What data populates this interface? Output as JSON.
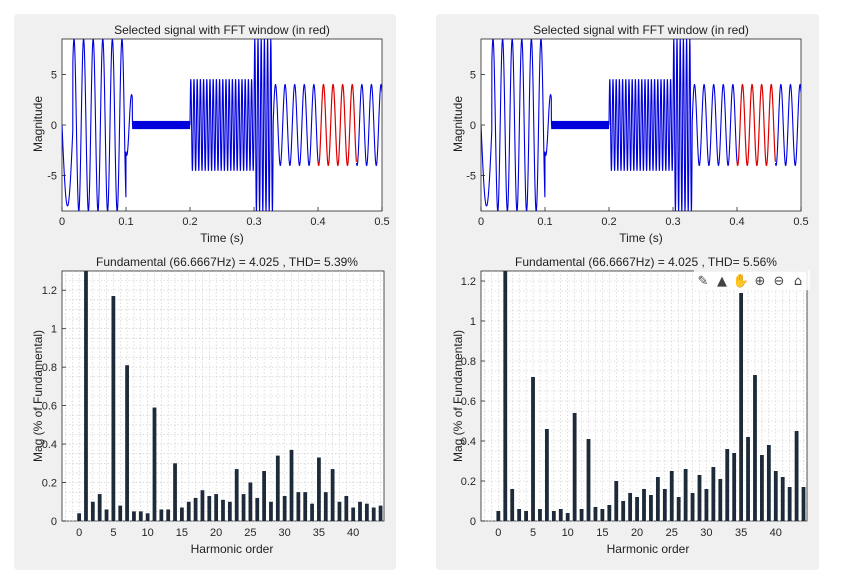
{
  "chart_data": [
    {
      "type": "line",
      "title": "Selected signal with FFT window (in red)",
      "xlabel": "Time (s)",
      "ylabel": "Magnitude",
      "xlim": [
        0,
        0.5
      ],
      "ylim": [
        -8.5,
        8.5
      ],
      "xticks": [
        "0",
        "0.1",
        "0.2",
        "0.3",
        "0.4",
        "0.5"
      ],
      "yticks": [
        "-5",
        "0",
        "5"
      ],
      "signal_color": "#0000dd",
      "window_color": "#dd0000",
      "fft_window": [
        0.4,
        0.46
      ],
      "segments": [
        {
          "t0": 0,
          "t1": 0.017,
          "amp": 8,
          "freq": 29,
          "phase": 3.14159
        },
        {
          "t0": 0.017,
          "t1": 0.1,
          "amp": 8.5,
          "freq": 66.7,
          "phase": 0
        },
        {
          "t0": 0.1,
          "t1": 0.11,
          "amp": 3,
          "freq": 66.7,
          "phase": 0
        },
        {
          "t0": 0.11,
          "t1": 0.2,
          "amp": 0.4,
          "freq": 666.7,
          "phase": 0
        },
        {
          "t0": 0.2,
          "t1": 0.3,
          "amp": 4.5,
          "freq": 200,
          "phase": 0
        },
        {
          "t0": 0.3,
          "t1": 0.33,
          "amp": 8.5,
          "freq": 200,
          "phase": 0
        },
        {
          "t0": 0.33,
          "t1": 0.5,
          "amp": 4,
          "freq": 66.7,
          "phase": 0
        }
      ]
    },
    {
      "type": "bar",
      "title": "Fundamental (66.6667Hz) = 4.025 , THD= 5.39%",
      "xlabel": "Harmonic order",
      "ylabel": "Mag (% of Fundamental)",
      "xlim": [
        -2.5,
        44.5
      ],
      "ylim": [
        0,
        1.3
      ],
      "xticks": [
        "0",
        "5",
        "10",
        "15",
        "20",
        "25",
        "30",
        "35",
        "40"
      ],
      "yticks": [
        "0",
        "0.2",
        "0.4",
        "0.6",
        "0.8",
        "1",
        "1.2"
      ],
      "bar_color": "#1c2a3a",
      "categories": [
        0,
        1,
        2,
        3,
        4,
        5,
        6,
        7,
        8,
        9,
        10,
        11,
        12,
        13,
        14,
        15,
        16,
        17,
        18,
        19,
        20,
        21,
        22,
        23,
        24,
        25,
        26,
        27,
        28,
        29,
        30,
        31,
        32,
        33,
        34,
        35,
        36,
        37,
        38,
        39,
        40,
        41,
        42,
        43,
        44
      ],
      "values": [
        0.04,
        1.3,
        0.1,
        0.14,
        0.06,
        1.17,
        0.08,
        0.81,
        0.05,
        0.05,
        0.04,
        0.59,
        0.06,
        0.06,
        0.3,
        0.07,
        0.1,
        0.12,
        0.16,
        0.13,
        0.14,
        0.11,
        0.1,
        0.27,
        0.14,
        0.2,
        0.12,
        0.26,
        0.1,
        0.34,
        0.13,
        0.37,
        0.15,
        0.15,
        0.09,
        0.33,
        0.15,
        0.27,
        0.1,
        0.13,
        0.07,
        0.1,
        0.09,
        0.07,
        0.08
      ]
    },
    {
      "type": "line",
      "title": "Selected signal with FFT window (in red)",
      "xlabel": "Time (s)",
      "ylabel": "Magnitude",
      "xlim": [
        0,
        0.5
      ],
      "ylim": [
        -8.5,
        8.5
      ],
      "xticks": [
        "0",
        "0.1",
        "0.2",
        "0.3",
        "0.4",
        "0.5"
      ],
      "yticks": [
        "-5",
        "0",
        "5"
      ],
      "signal_color": "#0000dd",
      "window_color": "#dd0000",
      "fft_window": [
        0.4,
        0.46
      ],
      "segments": [
        {
          "t0": 0,
          "t1": 0.017,
          "amp": 8,
          "freq": 29,
          "phase": 3.14159
        },
        {
          "t0": 0.017,
          "t1": 0.1,
          "amp": 8.5,
          "freq": 66.7,
          "phase": 0
        },
        {
          "t0": 0.1,
          "t1": 0.11,
          "amp": 3,
          "freq": 66.7,
          "phase": 0
        },
        {
          "t0": 0.11,
          "t1": 0.2,
          "amp": 0.4,
          "freq": 666.7,
          "phase": 0
        },
        {
          "t0": 0.2,
          "t1": 0.3,
          "amp": 4.5,
          "freq": 200,
          "phase": 0
        },
        {
          "t0": 0.3,
          "t1": 0.33,
          "amp": 8.5,
          "freq": 200,
          "phase": 0
        },
        {
          "t0": 0.33,
          "t1": 0.5,
          "amp": 4,
          "freq": 66.7,
          "phase": 0
        }
      ]
    },
    {
      "type": "bar",
      "title": "Fundamental (66.6667Hz) = 4.025 , THD= 5.56%",
      "xlabel": "Harmonic order",
      "ylabel": "Mag (% of Fundamental)",
      "xlim": [
        -2.5,
        44.5
      ],
      "ylim": [
        0,
        1.25
      ],
      "xticks": [
        "0",
        "5",
        "10",
        "15",
        "20",
        "25",
        "30",
        "35",
        "40"
      ],
      "yticks": [
        "0",
        "0.2",
        "0.4",
        "0.6",
        "0.8",
        "1",
        "1.2"
      ],
      "bar_color": "#1c2a3a",
      "categories": [
        0,
        1,
        2,
        3,
        4,
        5,
        6,
        7,
        8,
        9,
        10,
        11,
        12,
        13,
        14,
        15,
        16,
        17,
        18,
        19,
        20,
        21,
        22,
        23,
        24,
        25,
        26,
        27,
        28,
        29,
        30,
        31,
        32,
        33,
        34,
        35,
        36,
        37,
        38,
        39,
        40,
        41,
        42,
        43,
        44
      ],
      "values": [
        0.05,
        1.25,
        0.16,
        0.06,
        0.05,
        0.72,
        0.06,
        0.46,
        0.05,
        0.06,
        0.04,
        0.54,
        0.06,
        0.41,
        0.07,
        0.06,
        0.08,
        0.2,
        0.1,
        0.14,
        0.12,
        0.16,
        0.13,
        0.22,
        0.16,
        0.25,
        0.12,
        0.26,
        0.14,
        0.23,
        0.16,
        0.27,
        0.21,
        0.36,
        0.34,
        1.14,
        0.42,
        0.73,
        0.33,
        0.38,
        0.25,
        0.22,
        0.17,
        0.45,
        0.17
      ]
    }
  ],
  "toolbar": {
    "icons": [
      "data-tips-icon",
      "brush-icon",
      "pan-icon",
      "zoom-in-icon",
      "zoom-out-icon",
      "home-icon"
    ],
    "glyphs": [
      "✎",
      "▲",
      "✋",
      "⊕",
      "⊖",
      "⌂"
    ]
  }
}
